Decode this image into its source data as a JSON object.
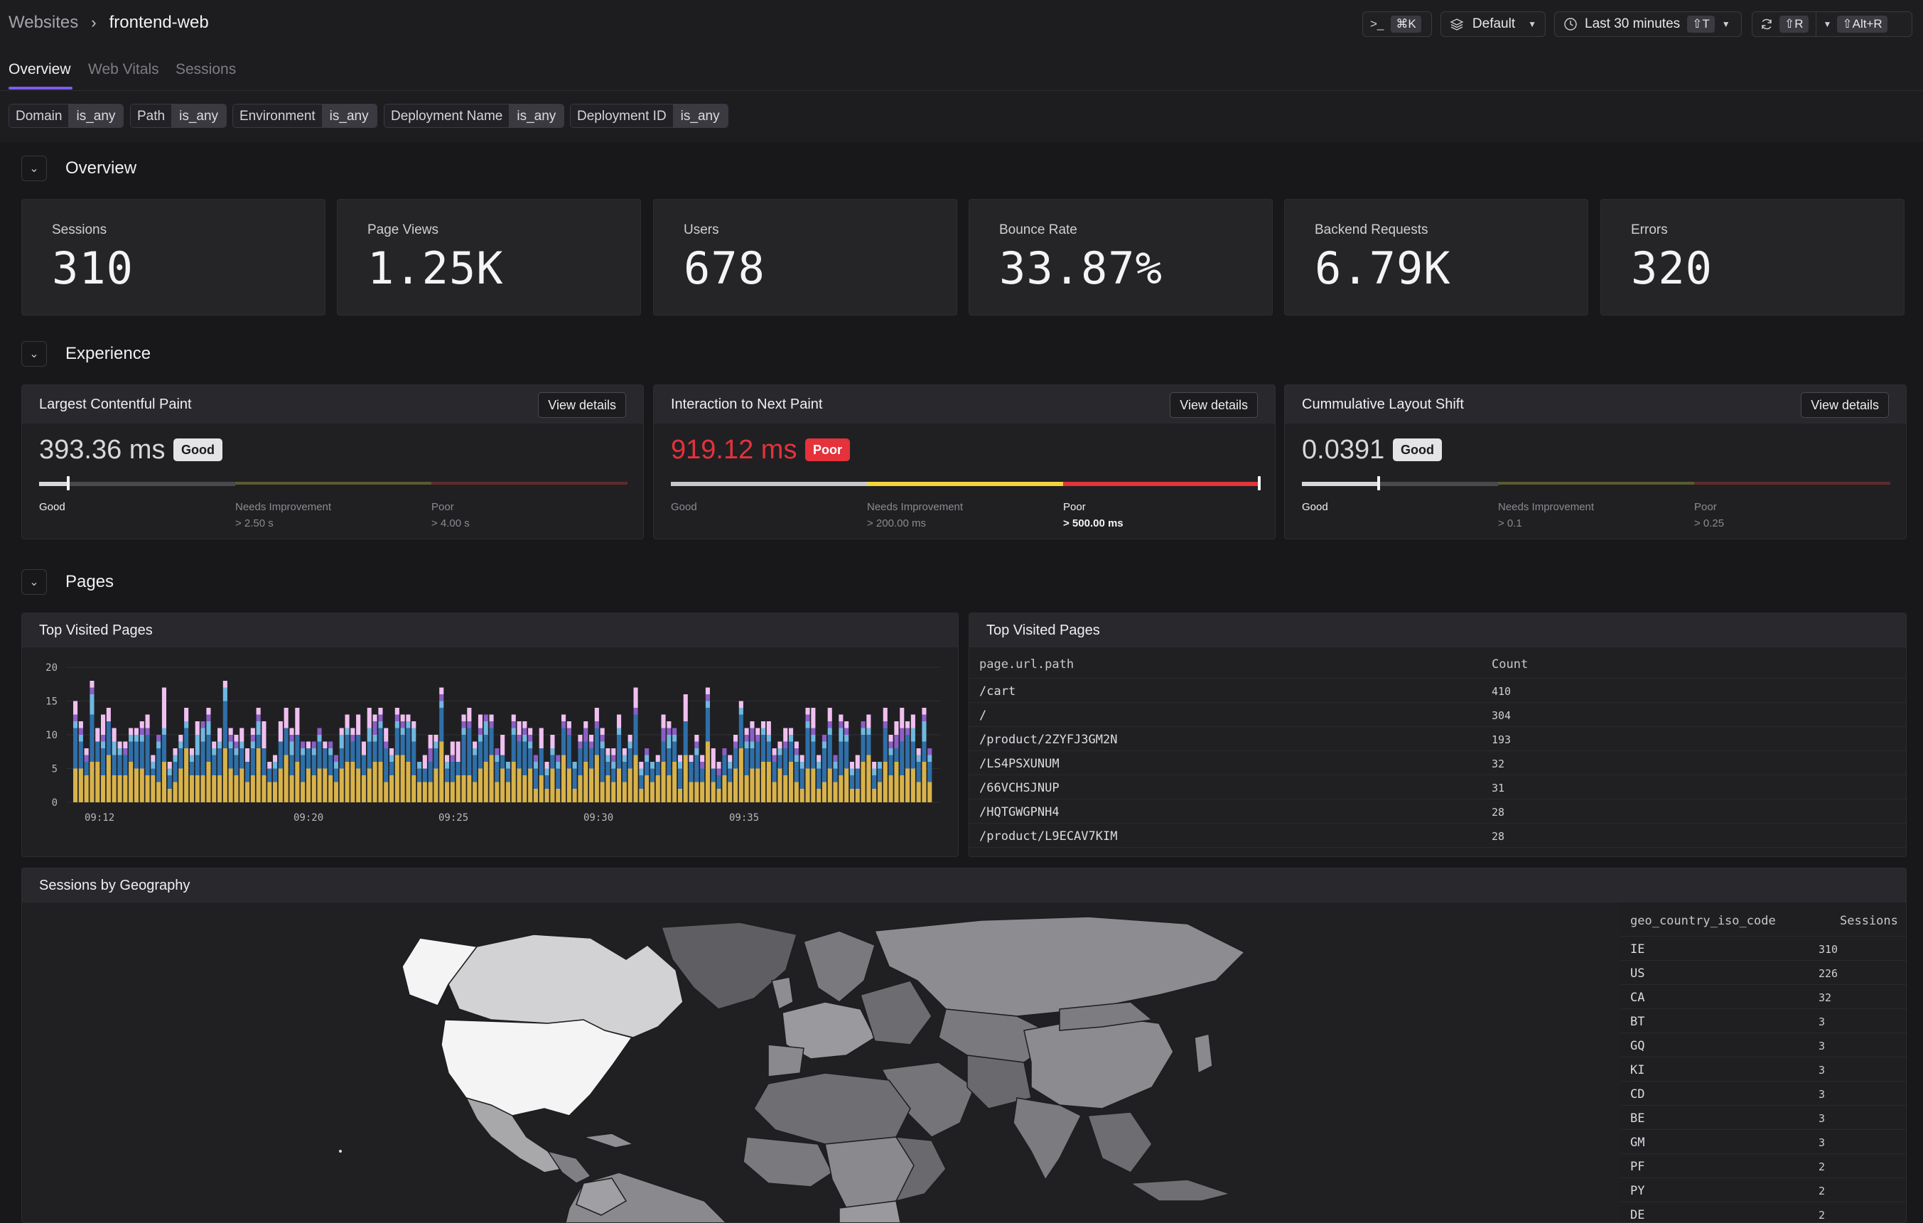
{
  "breadcrumb": {
    "root": "Websites",
    "current": "frontend-web"
  },
  "toolbar": {
    "command_shortcut": "⌘K",
    "view_label": "Default",
    "time_label": "Last 30 minutes",
    "time_shortcut": "⇧T",
    "refresh_shortcut": "⇧R",
    "auto_refresh_shortcut": "⇧Alt+R"
  },
  "tabs": [
    {
      "label": "Overview"
    },
    {
      "label": "Web Vitals"
    },
    {
      "label": "Sessions"
    }
  ],
  "filters": [
    {
      "key": "Domain",
      "op": "is_any"
    },
    {
      "key": "Path",
      "op": "is_any"
    },
    {
      "key": "Environment",
      "op": "is_any"
    },
    {
      "key": "Deployment Name",
      "op": "is_any"
    },
    {
      "key": "Deployment ID",
      "op": "is_any"
    }
  ],
  "sections": {
    "overview": "Overview",
    "experience": "Experience",
    "pages": "Pages"
  },
  "kpis": [
    {
      "label": "Sessions",
      "value": "310"
    },
    {
      "label": "Page Views",
      "value": "1.25K"
    },
    {
      "label": "Users",
      "value": "678"
    },
    {
      "label": "Bounce Rate",
      "value": "33.87%"
    },
    {
      "label": "Backend Requests",
      "value": "6.79K"
    },
    {
      "label": "Errors",
      "value": "320"
    }
  ],
  "vitals": [
    {
      "title": "Largest Contentful Paint",
      "button": "View details",
      "value": "393.36 ms",
      "rating": "Good",
      "rating_color": "#e4e4e6",
      "good": "Good",
      "needs": "Needs Improvement",
      "needs_threshold": "> 2.50 s",
      "poor": "Poor",
      "poor_threshold": "> 4.00 s",
      "position": 0.05,
      "active": "good"
    },
    {
      "title": "Interaction to Next Paint",
      "button": "View details",
      "value": "919.12 ms",
      "rating": "Poor",
      "rating_color": "#e5323b",
      "good": "Good",
      "needs": "Needs Improvement",
      "needs_threshold": "> 200.00 ms",
      "poor": "Poor",
      "poor_threshold": "> 500.00 ms",
      "position": 1.0,
      "active": "poor"
    },
    {
      "title": "Cummulative Layout Shift",
      "button": "View details",
      "value": "0.0391",
      "rating": "Good",
      "rating_color": "#e4e4e6",
      "good": "Good",
      "needs": "Needs Improvement",
      "needs_threshold": "> 0.1",
      "poor": "Poor",
      "poor_threshold": "> 0.25",
      "position": 0.13,
      "active": "good"
    }
  ],
  "top_pages_chart": {
    "title": "Top Visited Pages"
  },
  "chart_data": {
    "type": "bar",
    "stacked": true,
    "title": "Top Visited Pages",
    "x_ticks": [
      "09:12",
      "09:20",
      "09:25",
      "09:30",
      "09:35"
    ],
    "y_ticks": [
      "0",
      "5",
      "10",
      "15",
      "20"
    ],
    "ylim": [
      0,
      20
    ],
    "series_colors": [
      "#d8b24a",
      "#2f6fa8",
      "#6fb8e0",
      "#8a5fc6",
      "#f0c0f0"
    ],
    "grid": true
  },
  "top_pages_table": {
    "title": "Top Visited Pages",
    "columns": [
      "page.url.path",
      "Count"
    ],
    "rows": [
      {
        "path": "/cart",
        "count": "410"
      },
      {
        "path": "/",
        "count": "304"
      },
      {
        "path": "/product/2ZYFJ3GM2N",
        "count": "193"
      },
      {
        "path": "/LS4PSXUNUM",
        "count": "32"
      },
      {
        "path": "/66VCHSJNUP",
        "count": "31"
      },
      {
        "path": "/HQTGWGPNH4",
        "count": "28"
      },
      {
        "path": "/product/L9ECAV7KIM",
        "count": "28"
      }
    ]
  },
  "geo": {
    "title": "Sessions by Geography",
    "columns": [
      "geo_country_iso_code",
      "Sessions"
    ],
    "rows": [
      {
        "code": "IE",
        "sessions": "310"
      },
      {
        "code": "US",
        "sessions": "226"
      },
      {
        "code": "CA",
        "sessions": "32"
      },
      {
        "code": "BT",
        "sessions": "3"
      },
      {
        "code": "GQ",
        "sessions": "3"
      },
      {
        "code": "KI",
        "sessions": "3"
      },
      {
        "code": "CD",
        "sessions": "3"
      },
      {
        "code": "BE",
        "sessions": "3"
      },
      {
        "code": "GM",
        "sessions": "3"
      },
      {
        "code": "PF",
        "sessions": "2"
      },
      {
        "code": "PY",
        "sessions": "2"
      },
      {
        "code": "DE",
        "sessions": "2"
      }
    ]
  }
}
